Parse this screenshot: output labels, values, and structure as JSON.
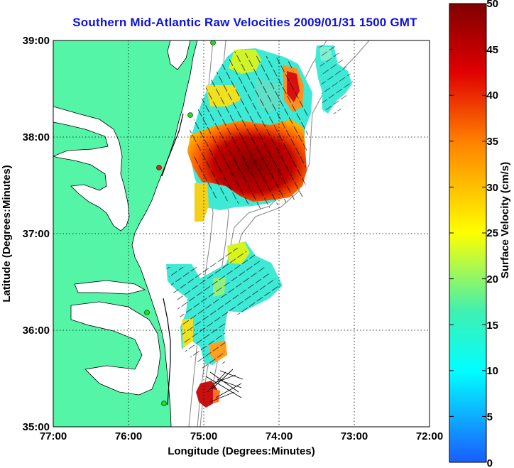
{
  "title": "Southern Mid-Atlantic Raw Velocities 2009/01/31 1500 GMT",
  "map": {
    "xlabel": "Longitude (Degrees:Minutes)",
    "ylabel": "Latitude (Degrees:Minutes)",
    "lon_ticks": [
      "77:00",
      "76:00",
      "75:00",
      "74:00",
      "73:00",
      "72:00"
    ],
    "lat_ticks": [
      "39:00",
      "38:00",
      "37:00",
      "36:00",
      "35:00"
    ],
    "lon_range": [
      -77,
      -72
    ],
    "lat_range": [
      35,
      39
    ],
    "land_color": "#55f5a8",
    "grid": "dotted"
  },
  "colorbar": {
    "label": "Surface Velocity (cm/s)",
    "ticks": [
      "0",
      "5",
      "10",
      "15",
      "20",
      "25",
      "30",
      "35",
      "40",
      "45",
      "50"
    ],
    "range": [
      0,
      50
    ],
    "colormap": "jet"
  }
}
